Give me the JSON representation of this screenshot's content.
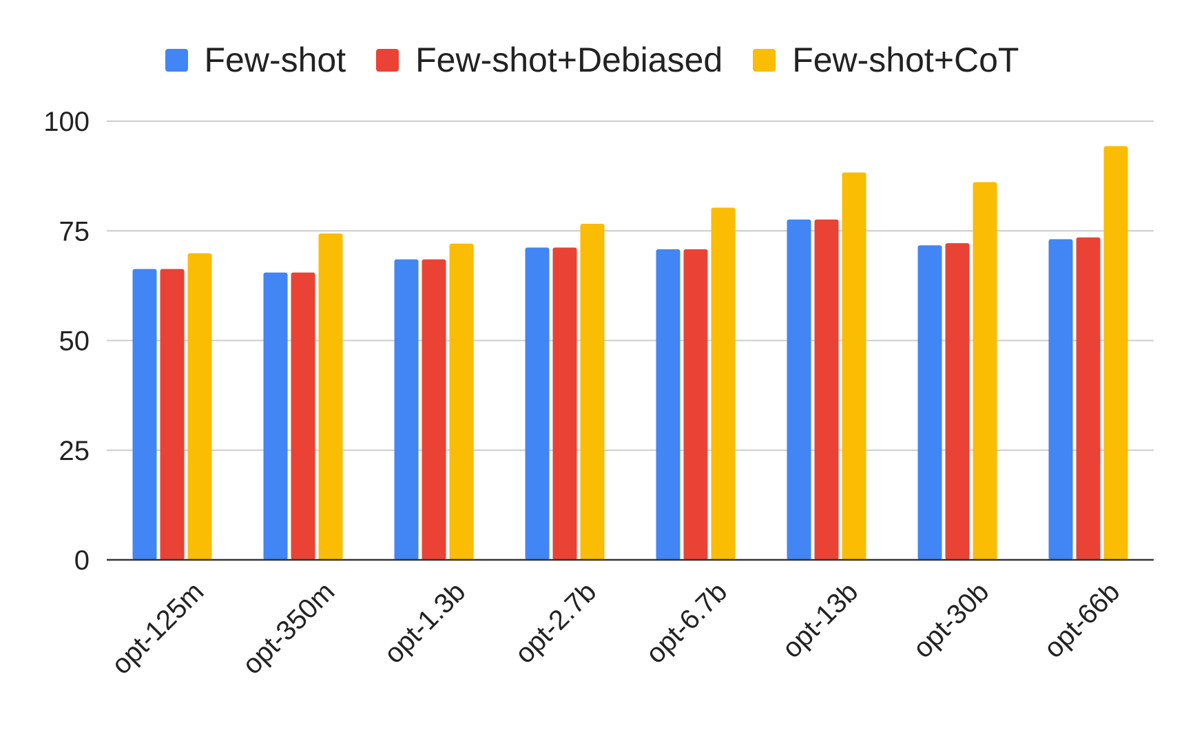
{
  "chart_data": {
    "type": "bar",
    "title": "",
    "xlabel": "",
    "ylabel": "",
    "categories": [
      "opt-125m",
      "opt-350m",
      "opt-1.3b",
      "opt-2.7b",
      "opt-6.7b",
      "opt-13b",
      "opt-30b",
      "opt-66b"
    ],
    "series": [
      {
        "name": "Few-shot",
        "color": "#4285F4",
        "values": [
          66.3,
          65.5,
          68.5,
          71.2,
          70.8,
          77.6,
          71.7,
          73.1
        ]
      },
      {
        "name": "Few-shot+Debiased",
        "color": "#EA4335",
        "values": [
          66.3,
          65.5,
          68.5,
          71.2,
          70.8,
          77.6,
          72.2,
          73.5
        ]
      },
      {
        "name": "Few-shot+CoT",
        "color": "#FBBC04",
        "values": [
          69.9,
          74.4,
          72.1,
          76.6,
          80.3,
          88.3,
          86.1,
          94.3
        ]
      }
    ],
    "ylim": [
      0,
      100
    ],
    "yticks": [
      0,
      25,
      50,
      75,
      100
    ],
    "grid": true,
    "legend_position": "top-center"
  }
}
